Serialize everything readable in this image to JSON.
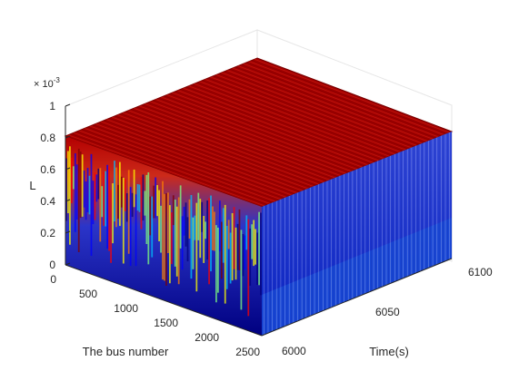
{
  "chart_data": {
    "type": "3d-surface",
    "title": "",
    "zlabel": "L",
    "xlabel": "The bus number",
    "ylabel": "Time(s)",
    "z_exponent_label": "× 10",
    "z_exponent_power": "-3",
    "x_ticks": [
      "0",
      "500",
      "1000",
      "1500",
      "2000",
      "2500"
    ],
    "y_ticks": [
      "6000",
      "6050",
      "6100"
    ],
    "z_ticks": [
      "0",
      "0.2",
      "0.4",
      "0.6",
      "0.8",
      "1"
    ],
    "xlim": [
      0,
      2500
    ],
    "ylim": [
      6000,
      6100
    ],
    "zlim": [
      0,
      0.001
    ],
    "surface_top_value": 0.00082,
    "right_face_high": 0.00082,
    "right_face_low": 0.0003,
    "colormap": [
      "#00007f",
      "#0000ff",
      "#00bfff",
      "#7fff7f",
      "#ffff00",
      "#ff7f00",
      "#ff0000",
      "#7f0000"
    ]
  }
}
